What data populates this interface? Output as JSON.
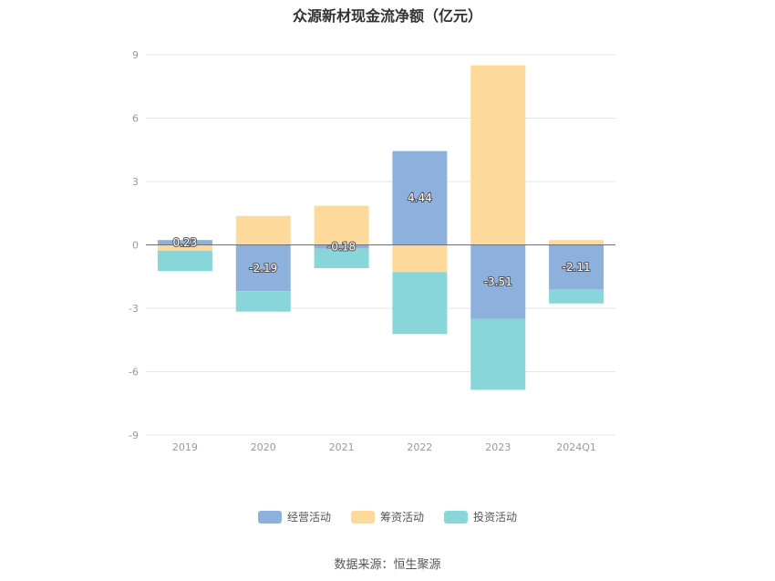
{
  "chart_data": {
    "type": "bar",
    "stacked": true,
    "title": "众源新材现金流净额（亿元）",
    "categories": [
      "2019",
      "2020",
      "2021",
      "2022",
      "2023",
      "2024Q1"
    ],
    "series": [
      {
        "name": "经营活动",
        "color": "#8eb0dc",
        "values": [
          0.23,
          -2.19,
          -0.18,
          4.44,
          -3.51,
          -2.11
        ],
        "labels": [
          "0.23",
          "-2.19",
          "-0.18",
          "4.44",
          "-3.51",
          "-2.11"
        ]
      },
      {
        "name": "筹资活动",
        "color": "#fdd99b",
        "values": [
          -0.27,
          1.37,
          1.85,
          -1.29,
          8.5,
          0.23
        ]
      },
      {
        "name": "投资活动",
        "color": "#88d6da",
        "values": [
          -0.97,
          -0.97,
          -0.92,
          -2.93,
          -3.35,
          -0.66
        ]
      }
    ],
    "yticks": [
      9,
      6,
      3,
      0,
      -3,
      -6,
      -9
    ],
    "ylim": [
      -9,
      9
    ],
    "grid": true,
    "legend_position": "bottom"
  },
  "source_text": "数据来源：恒生聚源"
}
